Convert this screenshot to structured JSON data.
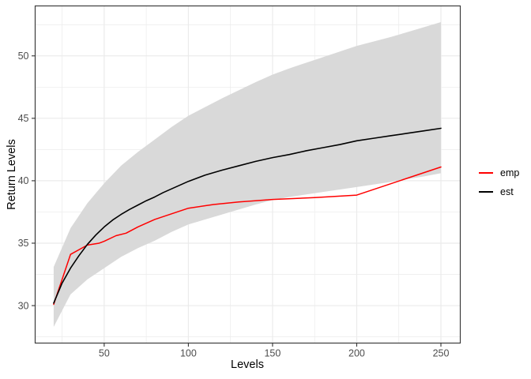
{
  "chart_data": {
    "type": "line",
    "title": "",
    "xlabel": "Levels",
    "ylabel": "Return Levels",
    "xlim": [
      9,
      261.5
    ],
    "ylim": [
      27,
      54
    ],
    "x_ticks": [
      50,
      100,
      150,
      200,
      250
    ],
    "y_ticks": [
      30,
      35,
      40,
      45,
      50
    ],
    "x_minor_ticks": [
      25,
      75,
      125,
      175,
      225
    ],
    "y_minor_ticks": [
      27.5,
      32.5,
      37.5,
      42.5,
      47.5,
      52.5
    ],
    "grid": true,
    "legend_position": "right",
    "panel_border_color": "#3c3c3c",
    "grid_color": "#ebebeb",
    "tick_color": "#333333",
    "tick_label_color": "#4d4d4d",
    "band": {
      "name": "confidence-band",
      "color": "#d9d9d9",
      "x": [
        20,
        30,
        40,
        50,
        60,
        70,
        80,
        90,
        100,
        120,
        140,
        150,
        160,
        180,
        200,
        220,
        240,
        250
      ],
      "lower": [
        28.3,
        30.9,
        32.1,
        33.0,
        33.9,
        34.6,
        35.2,
        35.9,
        36.5,
        37.3,
        38.1,
        38.45,
        38.7,
        39.1,
        39.5,
        39.9,
        40.35,
        40.6
      ],
      "upper": [
        33.1,
        36.2,
        38.2,
        39.8,
        41.2,
        42.3,
        43.3,
        44.3,
        45.2,
        46.6,
        47.9,
        48.5,
        49.0,
        49.9,
        50.8,
        51.5,
        52.3,
        52.7
      ]
    },
    "series": [
      {
        "name": "emp",
        "color": "#ff0000",
        "width": 1.5,
        "x": [
          20,
          30,
          40,
          47,
          50,
          57,
          63,
          70,
          80,
          90,
          100,
          115,
          130,
          150,
          175,
          200,
          250
        ],
        "y": [
          30.1,
          34.1,
          34.85,
          35.0,
          35.15,
          35.6,
          35.8,
          36.3,
          36.9,
          37.35,
          37.8,
          38.1,
          38.3,
          38.5,
          38.65,
          38.85,
          41.1
        ]
      },
      {
        "name": "est",
        "color": "#000000",
        "width": 1.6,
        "x": [
          20,
          25,
          30,
          35,
          40,
          45,
          50,
          55,
          60,
          65,
          70,
          75,
          80,
          85,
          90,
          95,
          100,
          110,
          120,
          130,
          140,
          150,
          160,
          170,
          180,
          190,
          200,
          210,
          220,
          230,
          240,
          250
        ],
        "y": [
          30.2,
          31.8,
          33.0,
          34.0,
          34.9,
          35.65,
          36.3,
          36.85,
          37.3,
          37.7,
          38.05,
          38.4,
          38.7,
          39.05,
          39.35,
          39.65,
          39.95,
          40.45,
          40.85,
          41.2,
          41.55,
          41.85,
          42.1,
          42.4,
          42.65,
          42.9,
          43.2,
          43.4,
          43.6,
          43.8,
          44.0,
          44.2
        ]
      }
    ],
    "legend": [
      {
        "label": "emp",
        "color": "#ff0000"
      },
      {
        "label": "est",
        "color": "#000000"
      }
    ]
  }
}
